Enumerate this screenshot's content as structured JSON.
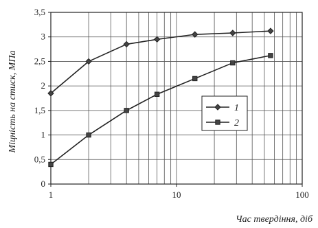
{
  "chart_data": {
    "type": "line",
    "title": "",
    "xlabel": "Час твердіння, діб",
    "ylabel": "Міцність на стиск, МПа",
    "x_scale": "log",
    "xlim": [
      1,
      100
    ],
    "ylim": [
      0,
      3.5
    ],
    "x_ticks": [
      {
        "value": 1,
        "label": "1"
      },
      {
        "value": 10,
        "label": "10"
      },
      {
        "value": 100,
        "label": "100"
      }
    ],
    "y_ticks": [
      {
        "value": 0,
        "label": "0"
      },
      {
        "value": 0.5,
        "label": "0,5"
      },
      {
        "value": 1,
        "label": "1"
      },
      {
        "value": 1.5,
        "label": "1,5"
      },
      {
        "value": 2,
        "label": "2"
      },
      {
        "value": 2.5,
        "label": "2,5"
      },
      {
        "value": 3,
        "label": "3"
      },
      {
        "value": 3.5,
        "label": "3,5"
      }
    ],
    "grid": true,
    "legend_position": "center-right",
    "series": [
      {
        "name": "1",
        "marker": "diamond",
        "x": [
          1,
          2,
          4,
          7,
          14,
          28,
          56
        ],
        "y": [
          1.85,
          2.5,
          2.85,
          2.95,
          3.05,
          3.08,
          3.12
        ]
      },
      {
        "name": "2",
        "marker": "square",
        "x": [
          1,
          2,
          4,
          7,
          14,
          28,
          56
        ],
        "y": [
          0.4,
          1.0,
          1.5,
          1.83,
          2.15,
          2.47,
          2.62
        ]
      }
    ],
    "colors": {
      "line": "#222222",
      "grid": "#555555",
      "axis": "#222222"
    }
  }
}
